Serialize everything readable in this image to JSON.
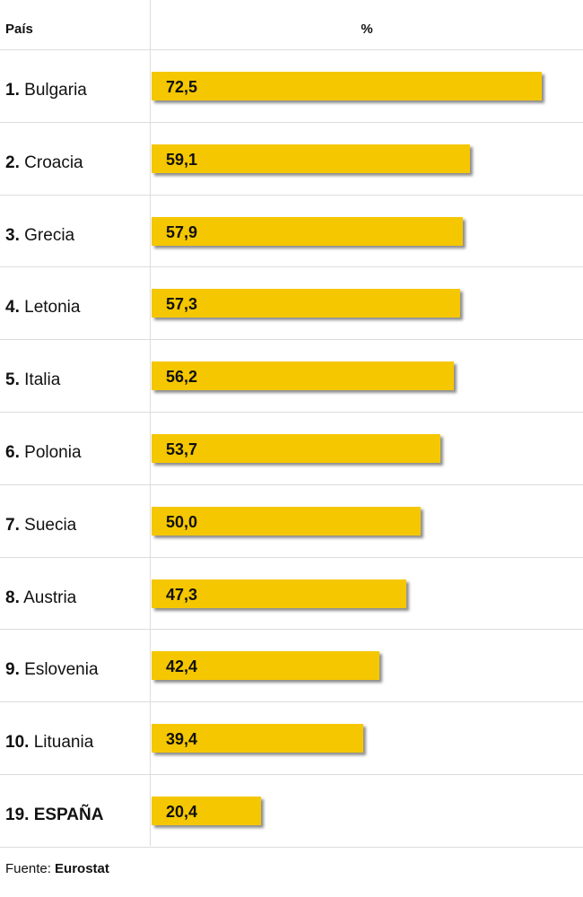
{
  "header": {
    "country_label": "País",
    "value_label": "%"
  },
  "chart_data": {
    "type": "bar",
    "orientation": "horizontal",
    "categories": [
      "Bulgaria",
      "Croacia",
      "Grecia",
      "Letonia",
      "Italia",
      "Polonia",
      "Suecia",
      "Austria",
      "Eslovenia",
      "Lituania",
      "ESPAÑA"
    ],
    "ranks": [
      "1.",
      "2.",
      "3.",
      "4.",
      "5.",
      "6.",
      "7.",
      "8.",
      "9.",
      "10.",
      "19."
    ],
    "values": [
      72.5,
      59.1,
      57.9,
      57.3,
      56.2,
      53.7,
      50.0,
      47.3,
      42.4,
      39.4,
      20.4
    ],
    "value_labels": [
      "72,5",
      "59,1",
      "57,9",
      "57,3",
      "56,2",
      "53,7",
      "50,0",
      "47,3",
      "42,4",
      "39,4",
      "20,4"
    ],
    "highlight": "ESPAÑA",
    "xlim": [
      0,
      80
    ],
    "grid": false,
    "bar_color": "#f5c700"
  },
  "footer": {
    "prefix": "Fuente: ",
    "source": "Eurostat"
  }
}
